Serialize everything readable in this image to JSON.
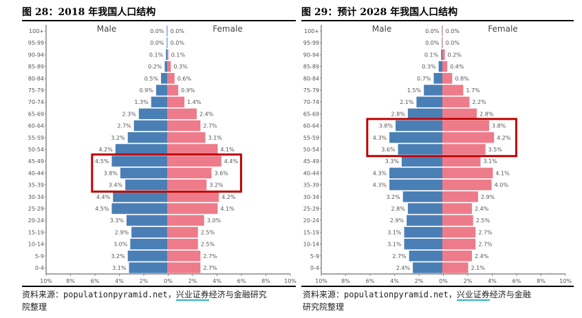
{
  "charts_meta": {
    "left": {
      "title": "图 28：2018 年我国人口结构"
    },
    "right": {
      "title": "图 29：预计 2028 年我国人口结构"
    }
  },
  "source": {
    "left": {
      "prefix": "资料来源：populationpyramid.net，",
      "highlight": "兴业证券",
      "suffix": "经济与金融研究",
      "line2": "院整理"
    },
    "right": {
      "prefix": "资料来源：populationpyramid.net，",
      "highlight": "兴业证券",
      "suffix": "经济与金融",
      "line2": "研究院整理"
    }
  },
  "colors": {
    "male": "#4a7fb5",
    "female": "#ee7b8a",
    "highlight_box": "#c00000"
  },
  "chart_data": [
    {
      "type": "bar",
      "orientation": "horizontal-pyramid",
      "title": "图 28：2018 年我国人口结构",
      "categories": [
        "100+",
        "95-99",
        "90-94",
        "85-89",
        "80-84",
        "75-79",
        "70-74",
        "65-69",
        "60-64",
        "55-59",
        "50-54",
        "45-49",
        "40-44",
        "35-39",
        "30-34",
        "25-29",
        "20-24",
        "15-19",
        "10-14",
        "5-9",
        "0-4"
      ],
      "series": [
        {
          "name": "Male",
          "values": [
            0.0,
            0.0,
            0.1,
            0.2,
            0.5,
            0.9,
            1.3,
            2.3,
            2.7,
            3.2,
            4.2,
            4.5,
            3.8,
            3.4,
            4.4,
            4.5,
            3.3,
            2.9,
            3.0,
            3.2,
            3.1
          ]
        },
        {
          "name": "Female",
          "values": [
            0.0,
            0.0,
            0.1,
            0.3,
            0.6,
            0.9,
            1.4,
            2.4,
            2.7,
            3.1,
            4.1,
            4.4,
            3.6,
            3.2,
            4.2,
            4.1,
            3.0,
            2.5,
            2.5,
            2.7,
            2.7
          ]
        }
      ],
      "xticks": [
        "10%",
        "8%",
        "6%",
        "4%",
        "2%",
        "0%",
        "2%",
        "4%",
        "6%",
        "8%",
        "10%"
      ],
      "xlim": [
        -10,
        10
      ],
      "highlighted_categories": [
        "45-49",
        "40-44",
        "35-39"
      ]
    },
    {
      "type": "bar",
      "orientation": "horizontal-pyramid",
      "title": "图 29：预计 2028 年我国人口结构",
      "categories": [
        "100+",
        "95-99",
        "90-94",
        "85-89",
        "80-84",
        "75-79",
        "70-74",
        "65-69",
        "60-64",
        "55-59",
        "50-54",
        "45-49",
        "40-44",
        "35-39",
        "30-34",
        "25-29",
        "20-24",
        "15-19",
        "10-14",
        "5-9",
        "0-4"
      ],
      "series": [
        {
          "name": "Male",
          "values": [
            0.0,
            0.0,
            0.1,
            0.3,
            0.7,
            1.5,
            2.1,
            2.8,
            3.8,
            4.3,
            3.6,
            3.3,
            4.3,
            4.3,
            3.2,
            2.8,
            2.9,
            3.1,
            3.1,
            2.7,
            2.4
          ]
        },
        {
          "name": "Female",
          "values": [
            0.0,
            0.0,
            0.2,
            0.4,
            0.8,
            1.7,
            2.2,
            2.8,
            3.8,
            4.2,
            3.5,
            3.1,
            4.1,
            4.0,
            2.9,
            2.4,
            2.5,
            2.7,
            2.7,
            2.4,
            2.1
          ]
        }
      ],
      "xticks": [
        "10%",
        "8%",
        "6%",
        "4%",
        "2%",
        "0%",
        "2%",
        "4%",
        "6%",
        "8%",
        "10%"
      ],
      "xlim": [
        -10,
        10
      ],
      "highlighted_categories": [
        "60-64",
        "55-59",
        "50-54"
      ]
    }
  ]
}
